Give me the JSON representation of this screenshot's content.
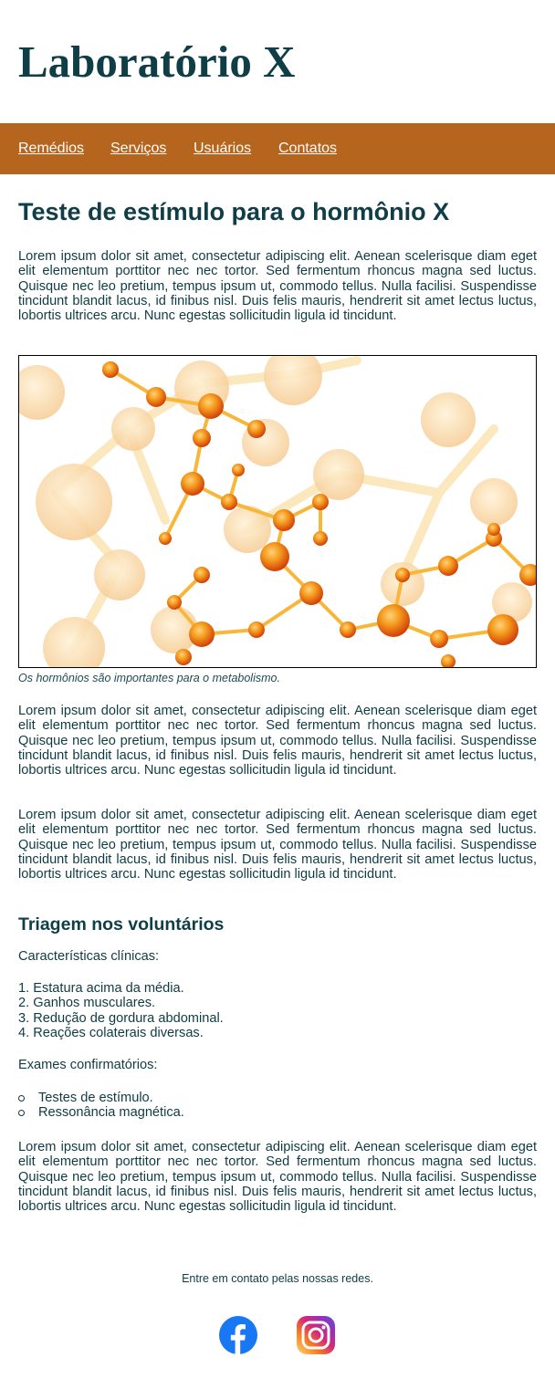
{
  "header": {
    "title": "Laboratório X"
  },
  "nav": {
    "items": [
      {
        "label": "Remédios"
      },
      {
        "label": "Serviços"
      },
      {
        "label": "Usuários"
      },
      {
        "label": "Contatos"
      }
    ],
    "background": "#b5651d"
  },
  "article": {
    "title": "Teste de estímulo para o hormônio X",
    "paragraphs": [
      "Lorem ipsum dolor sit amet, consectetur adipiscing elit. Aenean scelerisque diam eget elit elementum porttitor nec nec tortor. Sed fermentum rhoncus magna sed luctus. Quisque nec leo pretium, tempus ipsum ut, commodo tellus. Nulla facilisi. Suspendisse tincidunt blandit lacus, id finibus nisl. Duis felis mauris, hendrerit sit amet lectus luctus, lobortis ultrices arcu. Nunc egestas sollicitudin ligula id tincidunt.",
      "Lorem ipsum dolor sit amet, consectetur adipiscing elit. Aenean scelerisque diam eget elit elementum porttitor nec nec tortor. Sed fermentum rhoncus magna sed luctus. Quisque nec leo pretium, tempus ipsum ut, commodo tellus. Nulla facilisi. Suspendisse tincidunt blandit lacus, id finibus nisl. Duis felis mauris, hendrerit sit amet lectus luctus, lobortis ultrices arcu. Nunc egestas sollicitudin ligula id tincidunt.",
      "Lorem ipsum dolor sit amet, consectetur adipiscing elit. Aenean scelerisque diam eget elit elementum porttitor nec nec tortor. Sed fermentum rhoncus magna sed luctus. Quisque nec leo pretium, tempus ipsum ut, commodo tellus. Nulla facilisi. Suspendisse tincidunt blandit lacus, id finibus nisl. Duis felis mauris, hendrerit sit amet lectus luctus, lobortis ultrices arcu. Nunc egestas sollicitudin ligula id tincidunt.",
      "Lorem ipsum dolor sit amet, consectetur adipiscing elit. Aenean scelerisque diam eget elit elementum porttitor nec nec tortor. Sed fermentum rhoncus magna sed luctus. Quisque nec leo pretium, tempus ipsum ut, commodo tellus. Nulla facilisi. Suspendisse tincidunt blandit lacus, id finibus nisl. Duis felis mauris, hendrerit sit amet lectus luctus, lobortis ultrices arcu. Nunc egestas sollicitudin ligula id tincidunt."
    ],
    "figure": {
      "icon": "molecule-illustration",
      "caption": "Os hormônios são importantes para o metabolismo."
    },
    "screening": {
      "title": "Triagem nos voluntários",
      "clinical_label": "Características clínicas:",
      "clinical_items": [
        "1. Estatura acima da média.",
        "2. Ganhos musculares.",
        "3. Redução de gordura abdominal.",
        "4. Reações colaterais diversas."
      ],
      "exams_label": "Exames confirmatórios:",
      "exam_items": [
        "Testes de estímulo.",
        "Ressonância magnética."
      ]
    }
  },
  "footer": {
    "text": "Entre em contato pelas nossas redes.",
    "social": [
      {
        "icon": "facebook-icon",
        "color": "#1877f2"
      },
      {
        "icon": "instagram-icon",
        "color": "#e1306c"
      }
    ]
  }
}
